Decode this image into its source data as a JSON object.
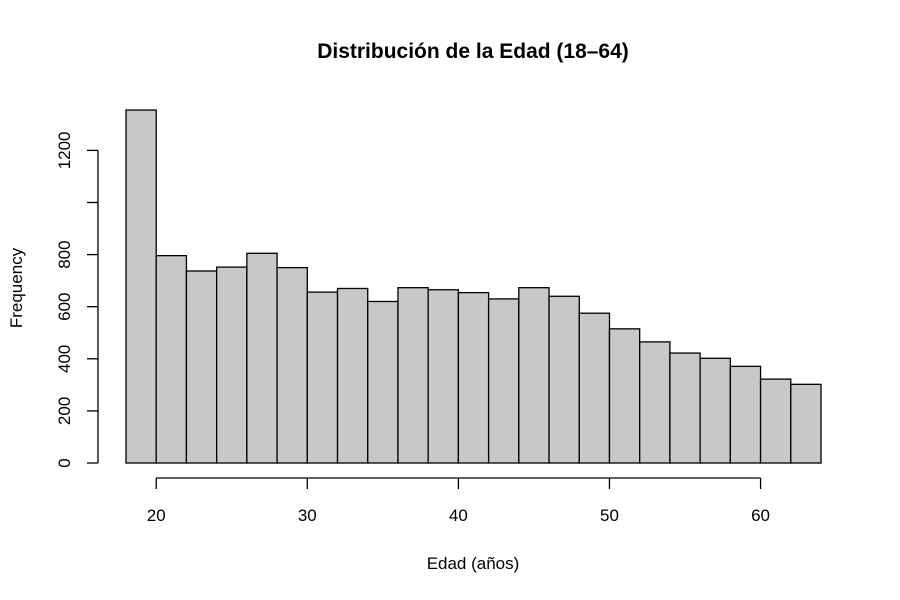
{
  "chart_data": {
    "type": "histogram",
    "title": "Distribución de la Edad (18–64)",
    "xlabel": "Edad (años)",
    "ylabel": "Frequency",
    "bin_edges": [
      18,
      20,
      22,
      24,
      26,
      28,
      30,
      32,
      34,
      36,
      38,
      40,
      42,
      44,
      46,
      48,
      50,
      52,
      54,
      56,
      58,
      60,
      62,
      64
    ],
    "values": [
      1355,
      796,
      737,
      752,
      805,
      750,
      656,
      670,
      620,
      673,
      665,
      654,
      630,
      673,
      640,
      575,
      515,
      465,
      422,
      402,
      371,
      322,
      302
    ],
    "xlim": [
      18,
      64
    ],
    "ylim": [
      0,
      1400
    ],
    "x_ticks": [
      20,
      30,
      40,
      50,
      60
    ],
    "y_ticks": [
      0,
      200,
      400,
      600,
      800,
      1000,
      1200
    ],
    "y_tick_labels": [
      "0",
      "200",
      "400",
      "600",
      "800",
      "",
      "1200"
    ],
    "bar_color": "#c8c8c8",
    "border_color": "#000000",
    "grid": false,
    "legend": "none"
  }
}
